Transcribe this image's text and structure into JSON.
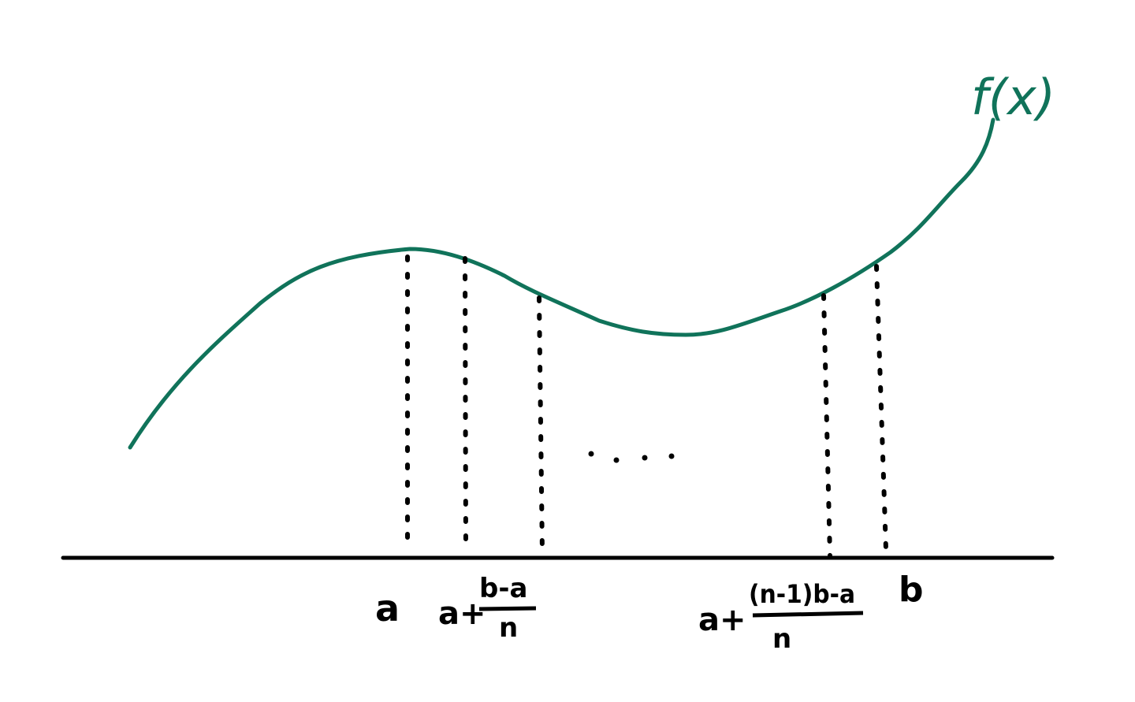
{
  "curve_label": "f(x)",
  "colors": {
    "curve": "#10735a",
    "ink": "#000000"
  },
  "labels": {
    "a": "a",
    "second": {
      "prefix": "a+",
      "numerator": "b-a",
      "denominator": "n"
    },
    "ellipsis": "· · · ·",
    "second_last": {
      "prefix": "a+",
      "numerator": "(n-1)b-a",
      "denominator": "n"
    },
    "b": "b"
  }
}
